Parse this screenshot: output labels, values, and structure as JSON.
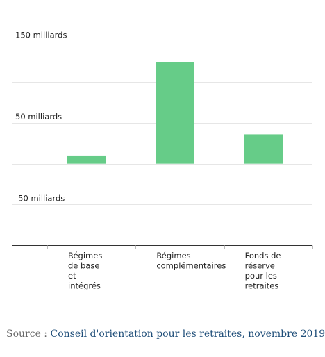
{
  "chart_data": {
    "type": "bar",
    "categories": [
      [
        "Régimes",
        "de base",
        "et",
        "intégrés"
      ],
      [
        "Régimes",
        "complémentaires"
      ],
      [
        "Fonds de",
        "réserve",
        "pour les",
        "retraites"
      ]
    ],
    "values": [
      10,
      125,
      36
    ],
    "ylim": [
      -100,
      200
    ],
    "y_tick_labels": [
      {
        "value": 150,
        "label": "150 milliards"
      },
      {
        "value": 50,
        "label": "50 milliards"
      },
      {
        "value": -50,
        "label": "-50 milliards"
      }
    ],
    "gridlines": [
      200,
      150,
      100,
      50,
      0,
      -50
    ],
    "bar_color": "#66cc88",
    "grid": true
  },
  "source": {
    "prefix": "Source : ",
    "link_text": "Conseil d'orientation pour les retraites, novembre 2019"
  },
  "colors": {
    "bar": "#66cc88",
    "grid": "#e6e6e6",
    "axis": "#333333",
    "text": "#222222",
    "source_prefix": "#666666",
    "source_link": "#1f4e79"
  }
}
